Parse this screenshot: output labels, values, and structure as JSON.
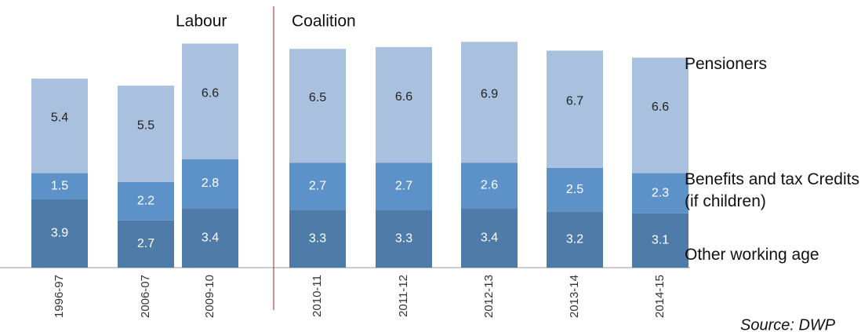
{
  "chart_data": {
    "type": "bar",
    "stacked": true,
    "annotations": [
      "Labour",
      "Coalition"
    ],
    "source": "Source: DWP",
    "categories": [
      "1996-97",
      "2006-07",
      "2009-10",
      "2010-11",
      "2011-12",
      "2012-13",
      "2013-14",
      "2014-15"
    ],
    "series": [
      {
        "name": "Other working age",
        "color": "#4f7ba8",
        "values": [
          3.9,
          2.7,
          3.4,
          3.3,
          3.3,
          3.4,
          3.2,
          3.1
        ]
      },
      {
        "name": "Benefits and tax Credits (if children)",
        "color": "#5d92c8",
        "values": [
          1.5,
          2.2,
          2.8,
          2.7,
          2.7,
          2.6,
          2.5,
          2.3
        ]
      },
      {
        "name": "Pensioners",
        "color": "#a9c1df",
        "values": [
          5.4,
          5.5,
          6.6,
          6.5,
          6.6,
          6.9,
          6.7,
          6.6
        ]
      }
    ]
  }
}
